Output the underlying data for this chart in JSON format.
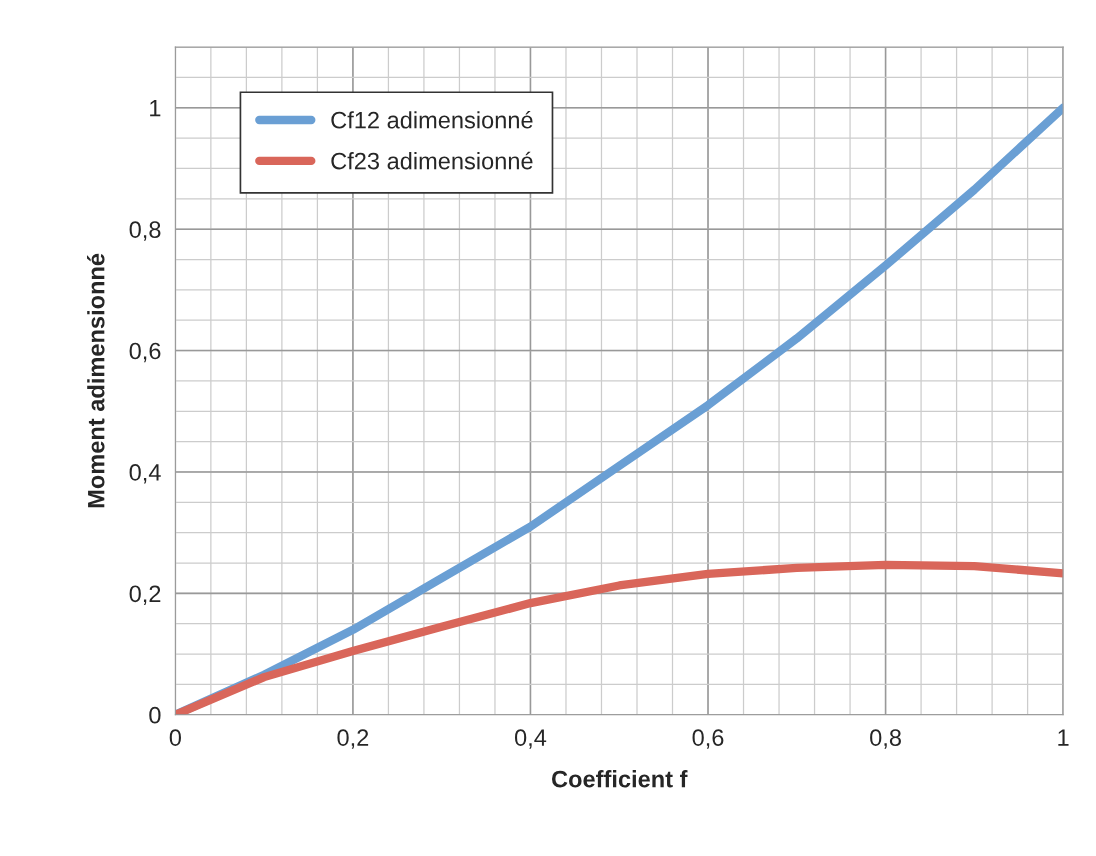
{
  "chart_data": {
    "type": "line",
    "xlabel": "Coefficient f",
    "ylabel": "Moment adimensionné",
    "x": [
      0,
      0.1,
      0.2,
      0.3,
      0.4,
      0.5,
      0.6,
      0.7,
      0.8,
      0.9,
      1.0
    ],
    "series": [
      {
        "name": "Cf12 adimensionné",
        "color": "#6a9fd4",
        "values": [
          0,
          0.066,
          0.14,
          0.225,
          0.31,
          0.41,
          0.51,
          0.62,
          0.74,
          0.865,
          1.0
        ]
      },
      {
        "name": "Cf23 adimensionné",
        "color": "#d9665a",
        "values": [
          0,
          0.062,
          0.105,
          0.145,
          0.184,
          0.213,
          0.232,
          0.242,
          0.247,
          0.245,
          0.233
        ]
      }
    ],
    "xlim": [
      0,
      1
    ],
    "ylim": [
      0,
      1.1
    ],
    "xticks": [
      {
        "value": 0,
        "label": "0"
      },
      {
        "value": 0.2,
        "label": "0,2"
      },
      {
        "value": 0.4,
        "label": "0,4"
      },
      {
        "value": 0.6,
        "label": "0,6"
      },
      {
        "value": 0.8,
        "label": "0,8"
      },
      {
        "value": 1,
        "label": "1"
      }
    ],
    "yticks": [
      {
        "value": 0,
        "label": "0"
      },
      {
        "value": 0.2,
        "label": "0,2"
      },
      {
        "value": 0.4,
        "label": "0,4"
      },
      {
        "value": 0.6,
        "label": "0,6"
      },
      {
        "value": 0.8,
        "label": "0,8"
      },
      {
        "value": 1,
        "label": "1"
      }
    ],
    "grid": true,
    "legend": "top left",
    "marker": "none",
    "line_style": "solid"
  }
}
